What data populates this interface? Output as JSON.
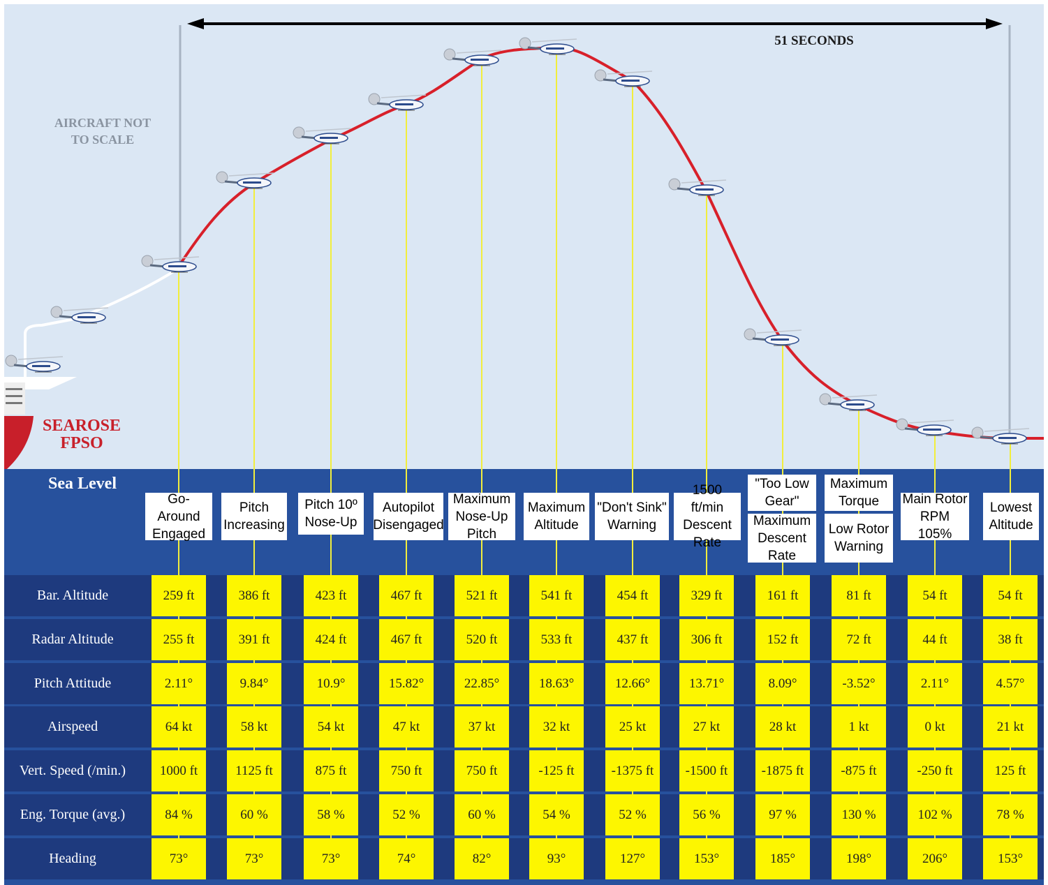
{
  "duration_label": "51 SECONDS",
  "scale_note": [
    "AIRCRAFT NOT",
    "TO SCALE"
  ],
  "vessel": {
    "line1": "SEAROSE",
    "line2": "FPSO"
  },
  "sea_level_label": "Sea Level",
  "events": [
    {
      "lines": [
        "Go-Around",
        "Engaged"
      ]
    },
    {
      "lines": [
        "Pitch",
        "Increasing"
      ]
    },
    {
      "lines": [
        "Pitch 10º",
        "Nose-Up"
      ]
    },
    {
      "lines": [
        "Autopilot",
        "Disengaged"
      ]
    },
    {
      "lines": [
        "Maximum",
        "Nose-Up",
        "Pitch"
      ]
    },
    {
      "lines": [
        "Maximum",
        "Altitude"
      ]
    },
    {
      "lines": [
        "\"Don't Sink\"",
        "Warning"
      ]
    },
    {
      "lines": [
        "1500 ft/min",
        "Descent",
        "Rate"
      ]
    },
    {
      "lines": [
        "\"Too Low",
        "Gear\""
      ],
      "lines2": [
        "Maximum",
        "Descent",
        "Rate"
      ]
    },
    {
      "lines": [
        "Maximum",
        "Torque"
      ],
      "lines2": [
        "Low Rotor",
        "Warning"
      ]
    },
    {
      "lines": [
        "Main Rotor",
        "RPM 105%"
      ]
    },
    {
      "lines": [
        "Lowest",
        "Altitude"
      ]
    }
  ],
  "parameters": [
    {
      "label": "Bar. Altitude",
      "values": [
        "259 ft",
        "386 ft",
        "423 ft",
        "467 ft",
        "521 ft",
        "541 ft",
        "454 ft",
        "329 ft",
        "161 ft",
        "81 ft",
        "54 ft",
        "54 ft"
      ]
    },
    {
      "label": "Radar Altitude",
      "values": [
        "255 ft",
        "391 ft",
        "424 ft",
        "467 ft",
        "520 ft",
        "533 ft",
        "437 ft",
        "306 ft",
        "152 ft",
        "72 ft",
        "44 ft",
        "38 ft"
      ]
    },
    {
      "label": "Pitch Attitude",
      "values": [
        "2.11°",
        "9.84°",
        "10.9°",
        "15.82°",
        "22.85°",
        "18.63°",
        "12.66°",
        "13.71°",
        "8.09°",
        "-3.52°",
        "2.11°",
        "4.57°"
      ]
    },
    {
      "label": "Airspeed",
      "values": [
        "64 kt",
        "58 kt",
        "54 kt",
        "47 kt",
        "37 kt",
        "32 kt",
        "25 kt",
        "27 kt",
        "28 kt",
        "1 kt",
        "0 kt",
        "21 kt"
      ]
    },
    {
      "label": "Vert. Speed (/min.)",
      "values": [
        "1000 ft",
        "1125 ft",
        "875 ft",
        "750 ft",
        "750 ft",
        "-125 ft",
        "-1375 ft",
        "-1500 ft",
        "-1875 ft",
        "-875 ft",
        "-250 ft",
        "125 ft"
      ]
    },
    {
      "label": "Eng. Torque (avg.)",
      "values": [
        "84 %",
        "60 %",
        "58 %",
        "52 %",
        "60 %",
        "54 %",
        "52 %",
        "56 %",
        "97 %",
        "130 %",
        "102 %",
        "78 %"
      ]
    },
    {
      "label": "Heading",
      "values": [
        "73°",
        "73°",
        "73°",
        "74°",
        "82°",
        "93°",
        "127°",
        "153°",
        "185°",
        "198°",
        "206°",
        "153°"
      ]
    }
  ],
  "colors": {
    "sky": "#dbe7f4",
    "sea": "#27519d",
    "table_row": "#1e3a7e",
    "cell": "#fdf600",
    "flight_path": "#d8202a",
    "drop_line": "#f2ee3c",
    "vessel_text": "#c8202a"
  }
}
